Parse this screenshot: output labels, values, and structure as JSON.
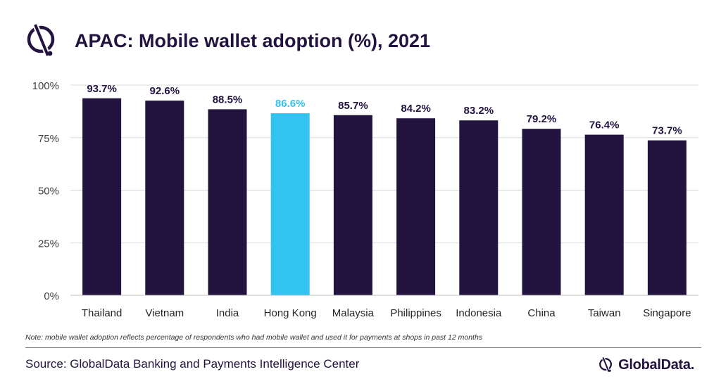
{
  "title": "APAC: Mobile wallet adoption (%), 2021",
  "note": "Note: mobile wallet adoption reflects percentage of respondents who had mobile wallet and used it for payments at shops in past 12 months",
  "source": "Source: GlobalData Banking and Payments Intelligence Center",
  "brand": "GlobalData.",
  "colors": {
    "bar": "#22133f",
    "highlight": "#33c3f0",
    "grid": "#d9d9d9",
    "text": "#22133f"
  },
  "chart_data": {
    "type": "bar",
    "title": "APAC: Mobile wallet adoption (%), 2021",
    "categories": [
      "Thailand",
      "Vietnam",
      "India",
      "Hong Kong",
      "Malaysia",
      "Philippines",
      "Indonesia",
      "China",
      "Taiwan",
      "Singapore"
    ],
    "values": [
      93.7,
      92.6,
      88.5,
      86.6,
      85.7,
      84.2,
      83.2,
      79.2,
      76.4,
      73.7
    ],
    "data_labels": [
      "93.7%",
      "92.6%",
      "88.5%",
      "86.6%",
      "85.7%",
      "84.2%",
      "83.2%",
      "79.2%",
      "76.4%",
      "73.7%"
    ],
    "highlight_category": "Hong Kong",
    "ylim": [
      0,
      100
    ],
    "yticks": [
      0,
      25,
      50,
      75,
      100
    ],
    "ytick_labels": [
      "0%",
      "25%",
      "50%",
      "75%",
      "100%"
    ],
    "grid": true,
    "legend": "none"
  }
}
